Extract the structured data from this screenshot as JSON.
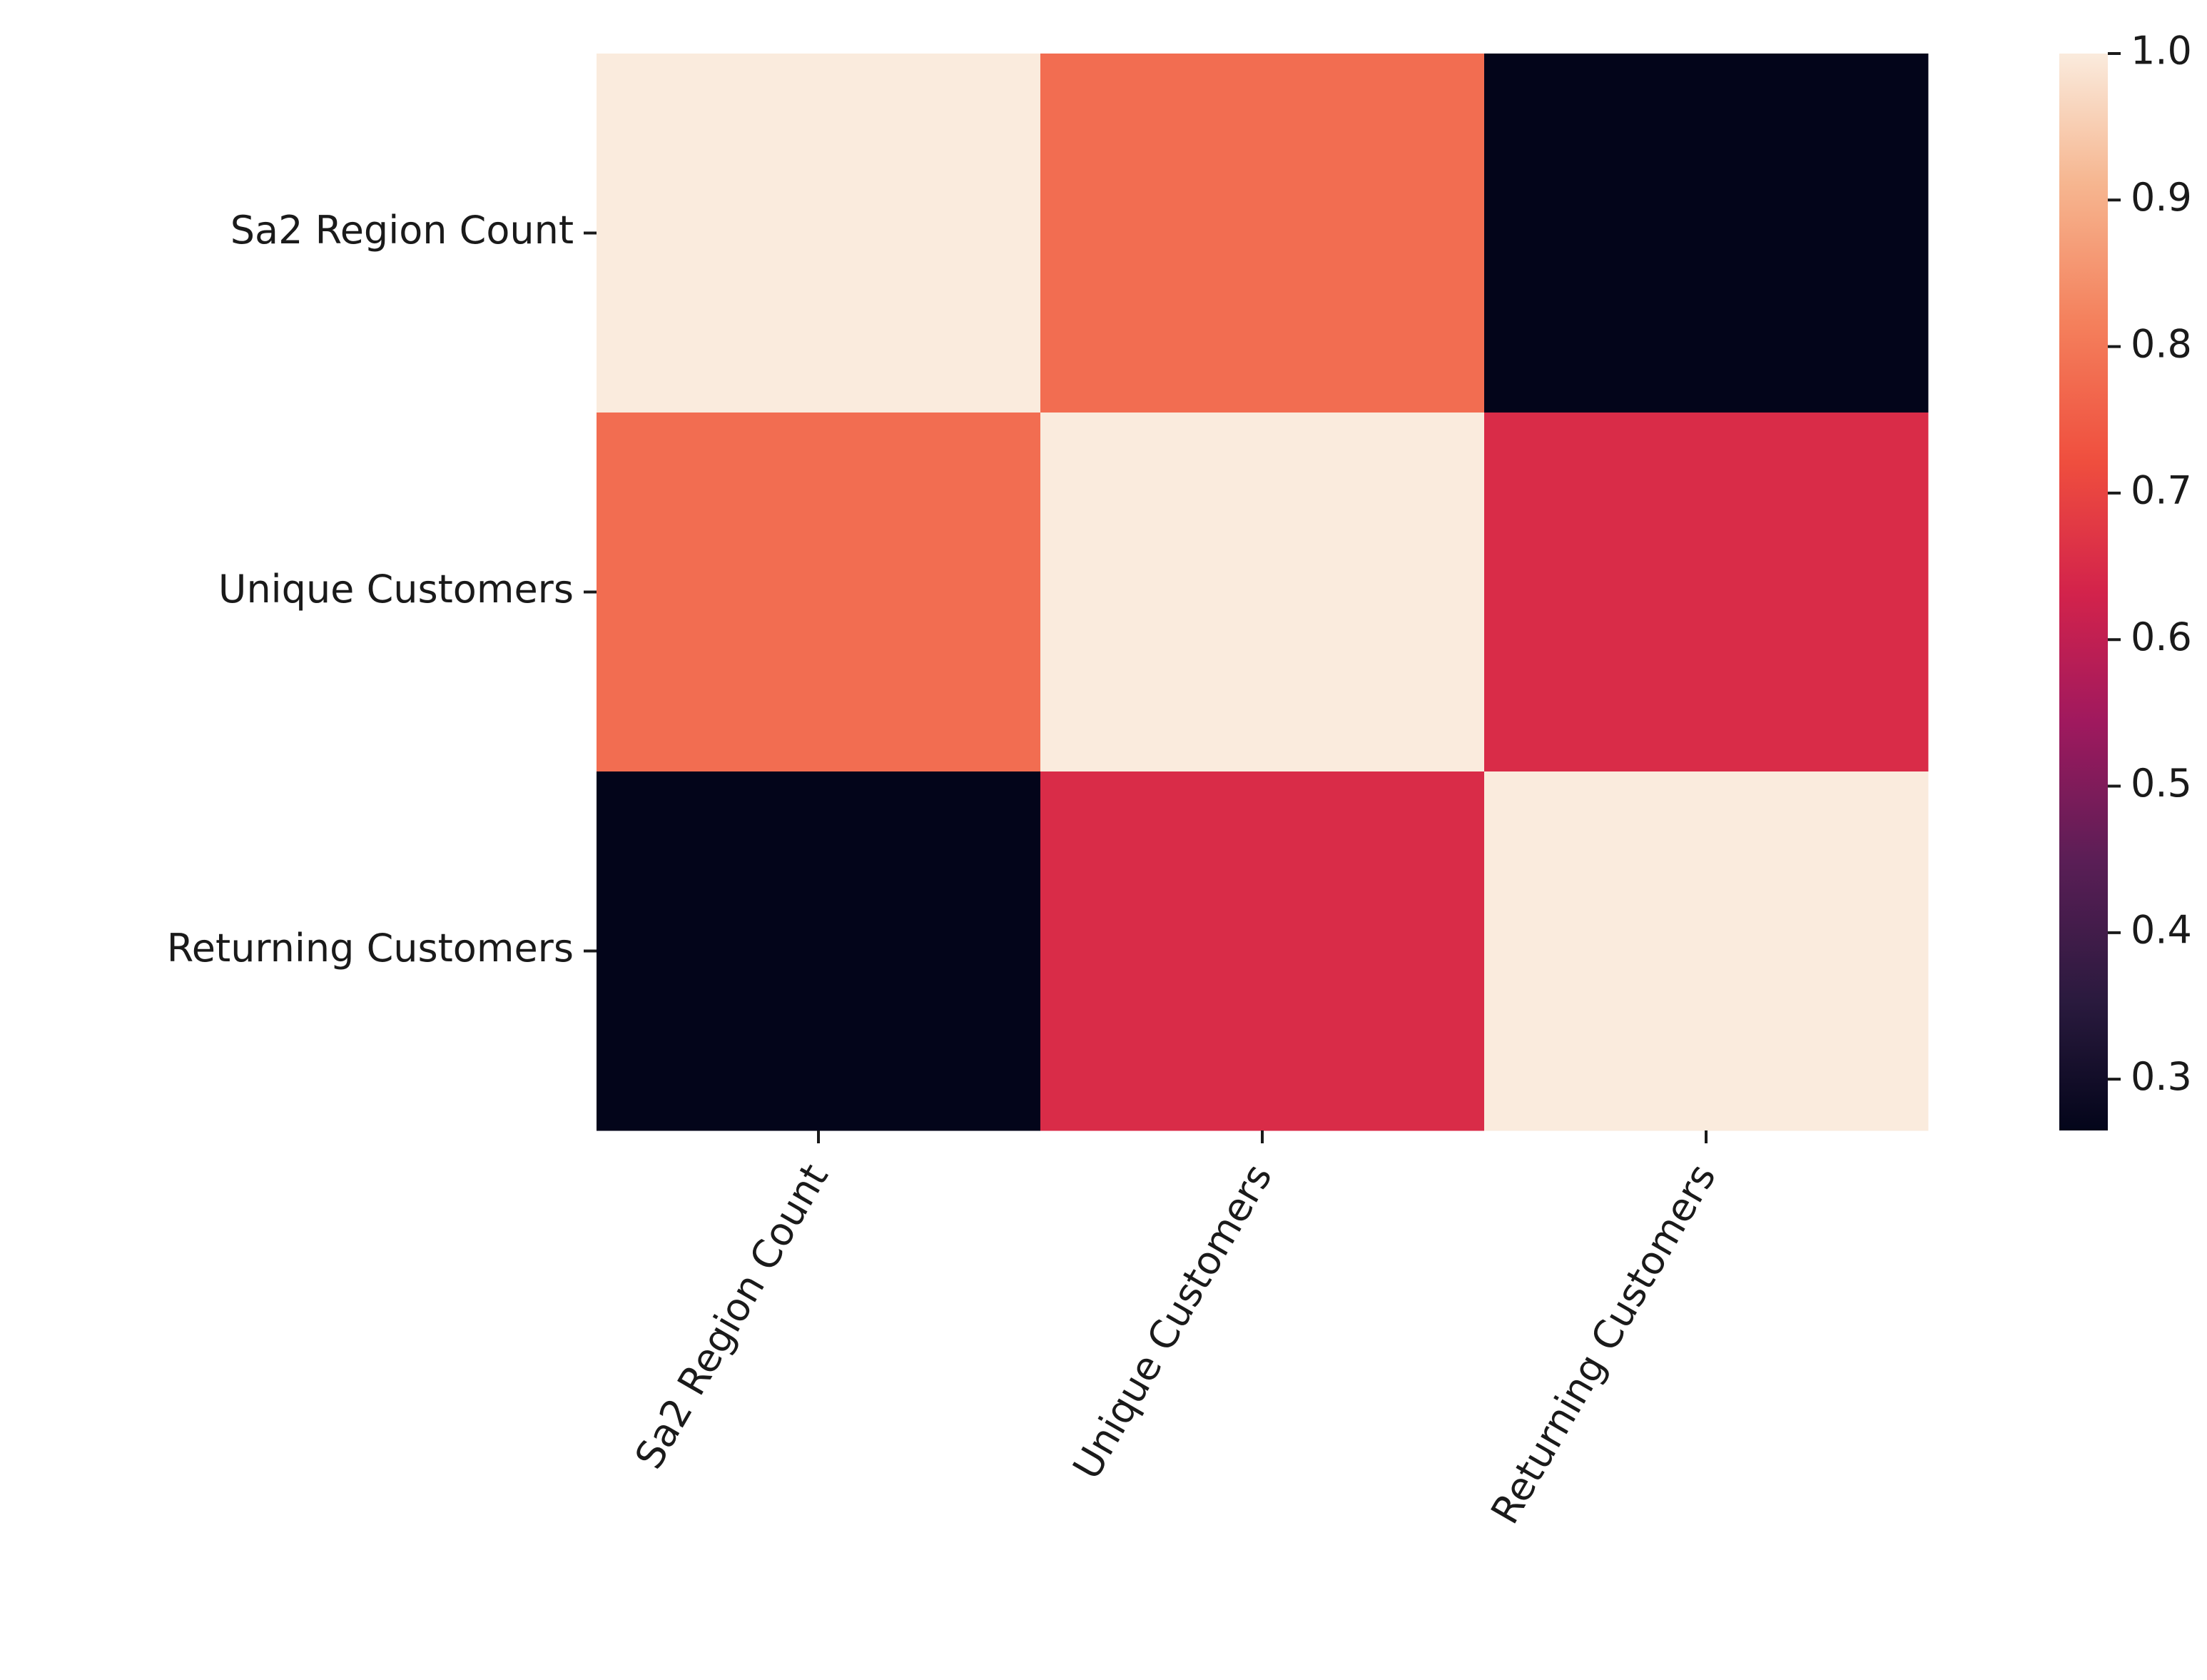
{
  "chart_data": {
    "type": "heatmap",
    "title": "",
    "xlabel": "",
    "ylabel": "",
    "rows": [
      "Sa2 Region Count",
      "Unique Customers",
      "Returning Customers"
    ],
    "cols": [
      "Sa2 Region Count",
      "Unique Customers",
      "Returning Customers"
    ],
    "values": [
      [
        1.0,
        0.78,
        0.265
      ],
      [
        0.78,
        1.0,
        0.65
      ],
      [
        0.265,
        0.65,
        1.0
      ]
    ],
    "colormap": "rocket",
    "colorbar": {
      "vmin": 0.265,
      "vmax": 1.0,
      "ticks": [
        "1.0",
        "0.9",
        "0.8",
        "0.7",
        "0.6",
        "0.5",
        "0.4",
        "0.3"
      ],
      "tick_values": [
        1.0,
        0.9,
        0.8,
        0.7,
        0.6,
        0.5,
        0.4,
        0.3
      ],
      "placement": "right"
    },
    "xtick_rotation": "-60 degrees"
  }
}
